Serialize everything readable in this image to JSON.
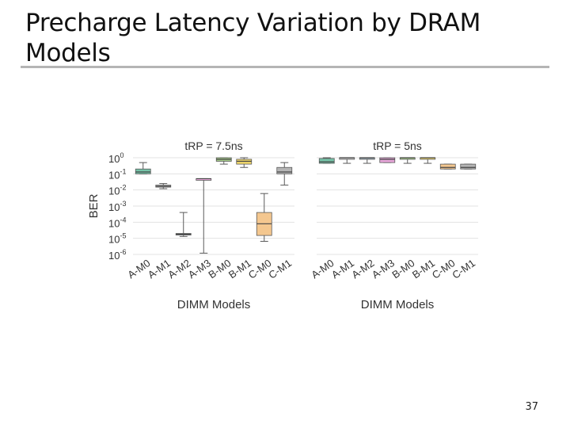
{
  "slide": {
    "title": "Precharge Latency Variation by DRAM Models",
    "page_number": "37"
  },
  "chart_data": [
    {
      "type": "boxplot",
      "title": "tRP = 7.5ns",
      "xlabel": "DIMM Models",
      "ylabel": "BER",
      "yscale": "log",
      "ylim": [
        1e-06,
        1
      ],
      "ytick_labels": [
        {
          "base": "10",
          "exp": "0"
        },
        {
          "base": "10",
          "exp": "-1"
        },
        {
          "base": "10",
          "exp": "-2"
        },
        {
          "base": "10",
          "exp": "-3"
        },
        {
          "base": "10",
          "exp": "-4"
        },
        {
          "base": "10",
          "exp": "-5"
        },
        {
          "base": "10",
          "exp": "-6"
        }
      ],
      "grid": true,
      "categories": [
        "A-M0",
        "A-M1",
        "A-M2",
        "A-M3",
        "B-M0",
        "B-M1",
        "C-M0",
        "C-M1"
      ],
      "boxes": [
        {
          "label": "A-M0",
          "whislo": 0.1,
          "q1": 0.1,
          "med": 0.13,
          "q3": 0.2,
          "whishi": 0.5
        },
        {
          "label": "A-M1",
          "whislo": 0.012,
          "q1": 0.015,
          "med": 0.017,
          "q3": 0.02,
          "whishi": 0.025
        },
        {
          "label": "A-M2",
          "whislo": 1.3e-05,
          "q1": 1.6e-05,
          "med": 1.8e-05,
          "q3": 2e-05,
          "whishi": 0.0004
        },
        {
          "label": "A-M3",
          "whislo": 1.2e-06,
          "q1": 0.05,
          "med": 0.05,
          "q3": 0.05,
          "whishi": 0.05
        },
        {
          "label": "B-M0",
          "whislo": 0.4,
          "q1": 0.6,
          "med": 0.8,
          "q3": 1.0,
          "whishi": 1.0
        },
        {
          "label": "B-M1",
          "whislo": 0.25,
          "q1": 0.4,
          "med": 0.6,
          "q3": 0.8,
          "whishi": 1.0
        },
        {
          "label": "C-M0",
          "whislo": 6.5e-06,
          "q1": 1.5e-05,
          "med": 8e-05,
          "q3": 0.0004,
          "whishi": 0.006
        },
        {
          "label": "C-M1",
          "whislo": 0.02,
          "q1": 0.1,
          "med": 0.13,
          "q3": 0.25,
          "whishi": 0.5
        }
      ]
    },
    {
      "type": "boxplot",
      "title": "tRP = 5ns",
      "xlabel": "DIMM Models",
      "ylabel": "",
      "yscale": "log",
      "ylim": [
        1e-06,
        1
      ],
      "grid": true,
      "categories": [
        "A-M0",
        "A-M1",
        "A-M2",
        "A-M3",
        "B-M0",
        "B-M1",
        "C-M0",
        "C-M1"
      ],
      "boxes": [
        {
          "label": "A-M0",
          "whislo": 0.45,
          "q1": 0.45,
          "med": 0.55,
          "q3": 0.9,
          "whishi": 1.0
        },
        {
          "label": "A-M1",
          "whislo": 0.45,
          "q1": 0.95,
          "med": 1.0,
          "q3": 1.0,
          "whishi": 1.0
        },
        {
          "label": "A-M2",
          "whislo": 0.45,
          "q1": 0.95,
          "med": 1.0,
          "q3": 1.0,
          "whishi": 1.0
        },
        {
          "label": "A-M3",
          "whislo": 0.5,
          "q1": 0.5,
          "med": 0.8,
          "q3": 1.0,
          "whishi": 1.0
        },
        {
          "label": "B-M0",
          "whislo": 0.45,
          "q1": 0.95,
          "med": 1.0,
          "q3": 1.0,
          "whishi": 1.0
        },
        {
          "label": "B-M1",
          "whislo": 0.45,
          "q1": 0.95,
          "med": 1.0,
          "q3": 1.0,
          "whishi": 1.0
        },
        {
          "label": "C-M0",
          "whislo": 0.2,
          "q1": 0.2,
          "med": 0.25,
          "q3": 0.4,
          "whishi": 0.4
        },
        {
          "label": "C-M1",
          "whislo": 0.2,
          "q1": 0.2,
          "med": 0.25,
          "q3": 0.4,
          "whishi": 0.4
        }
      ]
    }
  ],
  "colors": {
    "A-M0": "#76c3a8",
    "A-M1": "#c7c7c7",
    "A-M2": "#9aaab2",
    "A-M3": "#e7a6d9",
    "B-M0": "#a8d08d",
    "B-M1": "#f3da6c",
    "C-M0": "#f4c78f",
    "C-M1": "#b5b5b5",
    "grid": "#e3e3e3",
    "whisker": "#5a5a5a",
    "rule": "#b5b5b5"
  }
}
